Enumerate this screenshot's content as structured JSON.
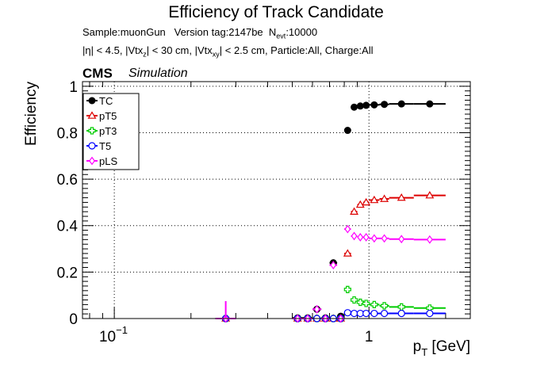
{
  "header": {
    "title": "Efficiency of Track Candidate",
    "sample_label": "Sample:muonGun",
    "version_label": "Version tag:2147be",
    "nevt_label": "N",
    "nevt_sub": "evt",
    "nevt_value": ":10000",
    "cuts_eta": "|η| < 4.5, |Vtx",
    "cuts_z_sub": "z",
    "cuts_mid": "| < 30 cm, |Vtx",
    "cuts_xy_sub": "xy",
    "cuts_tail": "| < 2.5 cm, Particle:All, Charge:All",
    "cms_label": "CMS",
    "simulation_label": "Simulation"
  },
  "chart_data": {
    "type": "scatter",
    "xscale": "log",
    "xlim": [
      0.075,
      2.5
    ],
    "ylim": [
      0,
      1.02
    ],
    "ylabel": "Efficiency",
    "xlabel": "p",
    "xlabel_sub": "T",
    "xlabel_unit": " [GeV]",
    "grid": true,
    "legend_position": "top-left",
    "yticks": [
      0,
      0.2,
      0.4,
      0.6,
      0.8,
      1
    ],
    "ytick_labels": [
      "0",
      "0.2",
      "0.4",
      "0.6",
      "0.8",
      "1"
    ],
    "xtick_labels": [
      "10",
      "−1",
      "1"
    ],
    "bins": [
      [
        0.25,
        0.3
      ],
      [
        0.5,
        0.55
      ],
      [
        0.55,
        0.6
      ],
      [
        0.6,
        0.65
      ],
      [
        0.65,
        0.7
      ],
      [
        0.7,
        0.75
      ],
      [
        0.75,
        0.8
      ],
      [
        0.8,
        0.85
      ],
      [
        0.85,
        0.9
      ],
      [
        0.9,
        0.95
      ],
      [
        0.95,
        1.0
      ],
      [
        1.0,
        1.1
      ],
      [
        1.1,
        1.2
      ],
      [
        1.2,
        1.5
      ],
      [
        1.5,
        2.0
      ]
    ],
    "series": [
      {
        "name": "TC",
        "color": "#000000",
        "marker": "filled-circle",
        "values": [
          0,
          0.003,
          0.003,
          0.04,
          0.003,
          0.24,
          0.01,
          0.81,
          0.91,
          0.915,
          0.918,
          0.92,
          0.922,
          0.924,
          0.924
        ]
      },
      {
        "name": "pT5",
        "color": "#dd0000",
        "marker": "open-triangle",
        "values": [
          0,
          0,
          0,
          0,
          0,
          0,
          0,
          0.28,
          0.46,
          0.49,
          0.5,
          0.51,
          0.515,
          0.52,
          0.53
        ]
      },
      {
        "name": "pT3",
        "color": "#00cc00",
        "marker": "open-cross",
        "values": [
          0,
          0,
          0,
          0,
          0,
          0,
          0,
          0.125,
          0.08,
          0.07,
          0.065,
          0.06,
          0.055,
          0.05,
          0.045
        ]
      },
      {
        "name": "T5",
        "color": "#0000ff",
        "marker": "open-circle",
        "values": [
          0,
          0,
          0,
          0,
          0,
          0,
          0,
          0.025,
          0.022,
          0.022,
          0.022,
          0.022,
          0.022,
          0.022,
          0.022
        ]
      },
      {
        "name": "pLS",
        "color": "#ff00ff",
        "marker": "open-diamond",
        "values": [
          0,
          0,
          0,
          0.04,
          0,
          0.23,
          0,
          0.385,
          0.355,
          0.35,
          0.35,
          0.345,
          0.345,
          0.342,
          0.34
        ]
      }
    ],
    "error_bar": {
      "bin": 0,
      "low": 0,
      "high": 0.075
    }
  }
}
